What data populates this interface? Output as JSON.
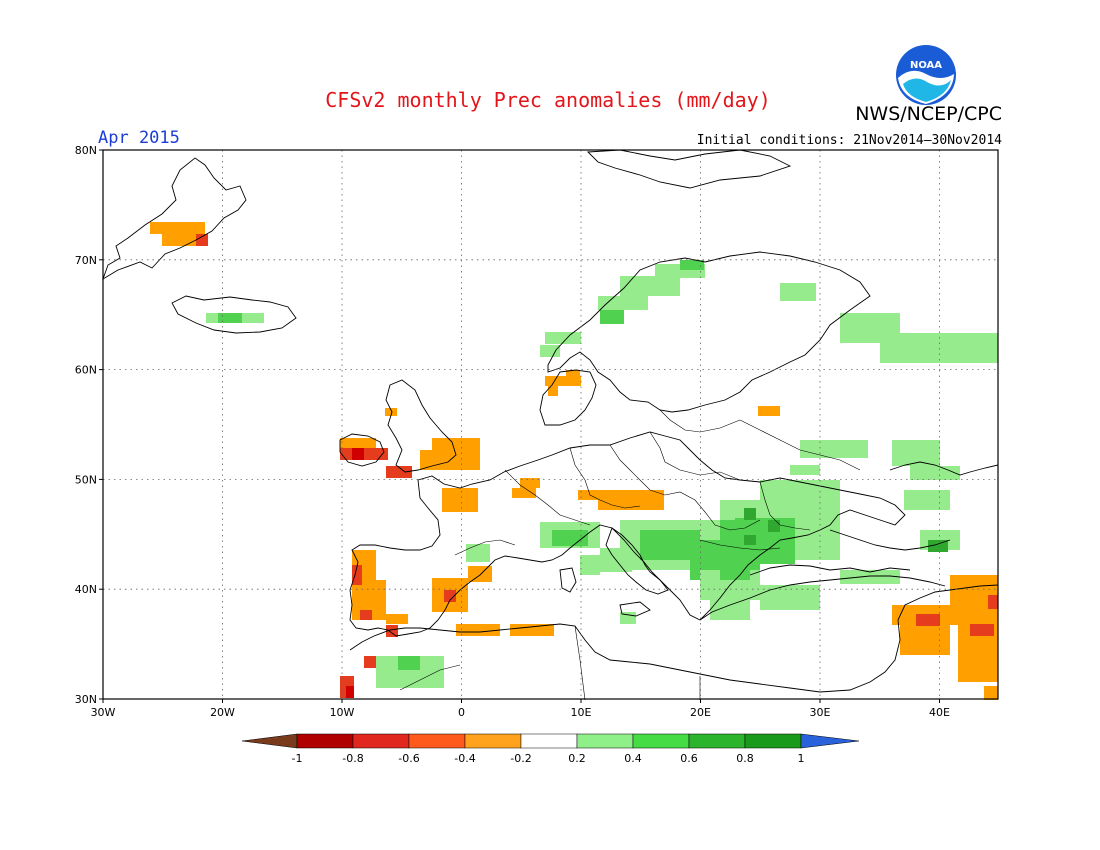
{
  "header": {
    "title": "CFSv2 monthly Prec anomalies (mm/day)",
    "agency": "NWS/NCEP/CPC",
    "month": "Apr 2015",
    "initial_conditions": "Initial conditions: 21Nov2014–30Nov2014"
  },
  "logo": {
    "text": "NOAA",
    "icon": "noaa-logo-icon"
  },
  "map": {
    "lon_range": [
      -30,
      45
    ],
    "lat_range": [
      30,
      80
    ],
    "lat_ticks": [
      "30N",
      "40N",
      "50N",
      "60N",
      "70N",
      "80N"
    ],
    "lon_ticks": [
      "30W",
      "20W",
      "10W",
      "0",
      "10E",
      "20E",
      "30E",
      "40E"
    ],
    "grid": "dotted"
  },
  "colorbar": {
    "labels": [
      "-1",
      "-0.8",
      "-0.6",
      "-0.4",
      "-0.2",
      "0.2",
      "0.4",
      "0.6",
      "0.8",
      "1"
    ],
    "colors": [
      "#7a3b1c",
      "#b00000",
      "#e0281e",
      "#ff5a1e",
      "#ffa31e",
      "#ffffff",
      "#8ff08a",
      "#46dc46",
      "#2cb42c",
      "#1a9a1a",
      "#2a62dc"
    ]
  },
  "anomaly_colors": {
    "-0.8": "#d00000",
    "-0.6": "#e63c1e",
    "-0.4": "#ffa000",
    "0.2": "#96ec8c",
    "0.4": "#50d250",
    "0.6": "#30a830"
  }
}
